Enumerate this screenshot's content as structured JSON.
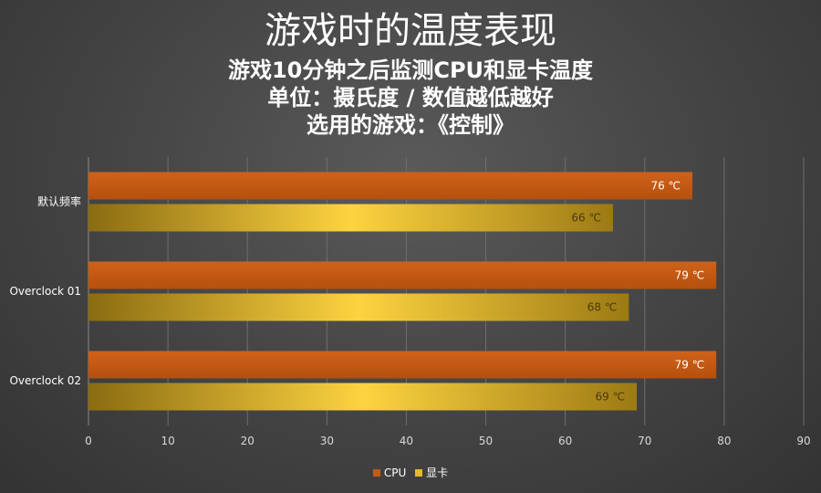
{
  "title": "游戏时的温度表现",
  "subtitle_lines": [
    "游戏10分钟之后监测CPU和显卡温度",
    "单位：摄氏度 / 数值越低越好",
    "选用的游戏：《控制》"
  ],
  "chart_data": {
    "type": "bar",
    "orientation": "horizontal",
    "categories": [
      "默认频率",
      "Overclock 01",
      "Overclock 02"
    ],
    "series": [
      {
        "name": "CPU",
        "values": [
          76,
          79,
          79
        ],
        "labels": [
          "76 ℃",
          "79 ℃",
          "79 ℃"
        ],
        "color": "#c55a11"
      },
      {
        "name": "显卡",
        "values": [
          66,
          68,
          69
        ],
        "labels": [
          "66 ℃",
          "68 ℃",
          "69 ℃"
        ],
        "color": "#e6b92e"
      }
    ],
    "xlim": [
      0,
      90
    ],
    "xticks": [
      "0",
      "10",
      "20",
      "30",
      "40",
      "50",
      "60",
      "70",
      "80",
      "90"
    ],
    "grid": true,
    "legend_position": "bottom"
  }
}
